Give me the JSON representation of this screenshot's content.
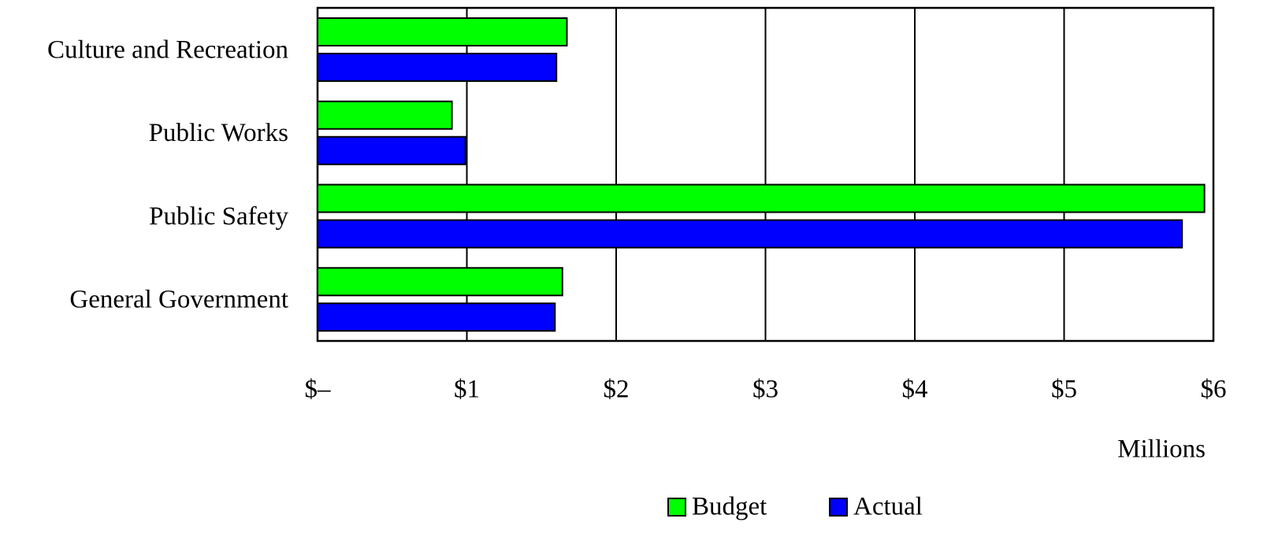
{
  "chart_data": {
    "type": "barh",
    "categories": [
      "Culture and Recreation",
      "Public Works",
      "Public Safety",
      "General Government"
    ],
    "series": [
      {
        "name": "Budget",
        "color": "#00ff00",
        "values": [
          1.67,
          0.9,
          5.94,
          1.64
        ]
      },
      {
        "name": "Actual",
        "color": "#0000ff",
        "values": [
          1.6,
          0.99,
          5.79,
          1.59
        ]
      }
    ],
    "xlim": [
      0,
      6
    ],
    "xticks": [
      {
        "value": 0,
        "label": "$–"
      },
      {
        "value": 1,
        "label": "$1"
      },
      {
        "value": 2,
        "label": "$2"
      },
      {
        "value": 3,
        "label": "$3"
      },
      {
        "value": 4,
        "label": "$4"
      },
      {
        "value": 5,
        "label": "$5"
      },
      {
        "value": 6,
        "label": "$6"
      }
    ],
    "xlabel": "Millions",
    "grid": true,
    "legend": "bottom"
  }
}
